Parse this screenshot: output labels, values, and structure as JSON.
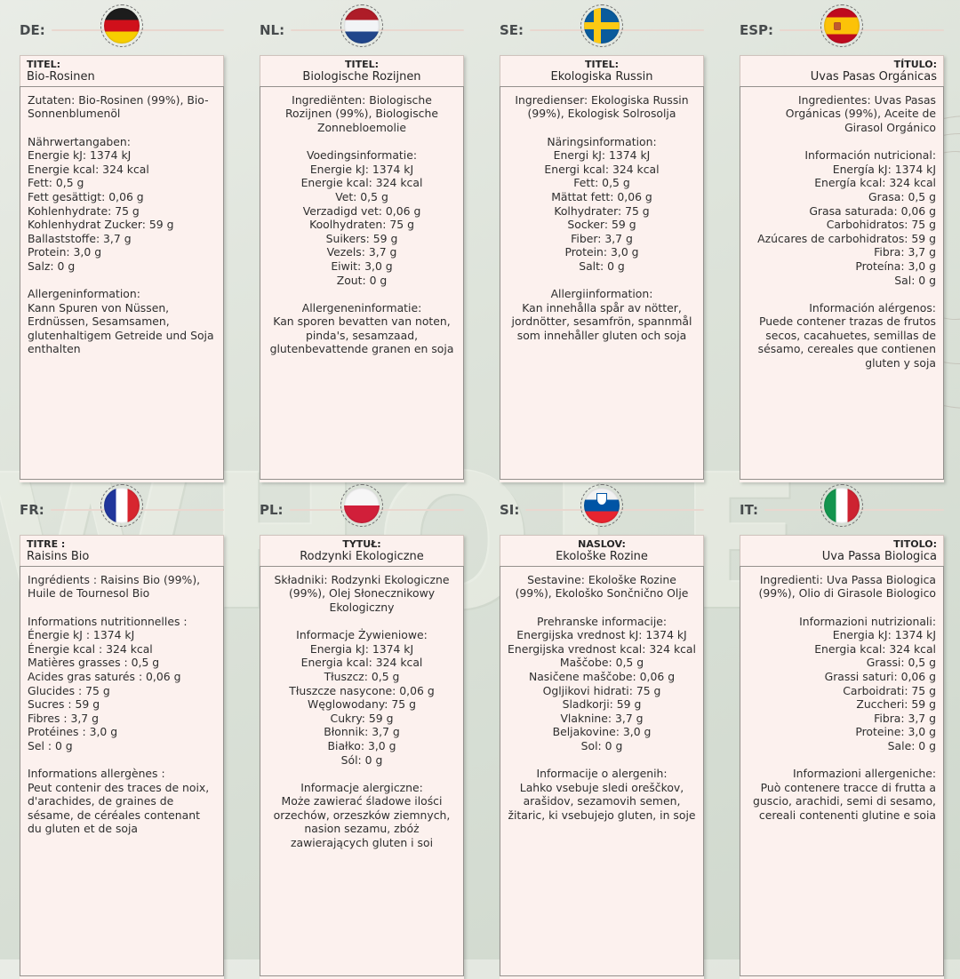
{
  "page": {
    "background_watermark": "WHOLE"
  },
  "panels": [
    {
      "code": "DE:",
      "flag": "germany-flag-icon",
      "title_label": "TITEL:",
      "title": "Bio-Rosinen",
      "body": "Zutaten: Bio-Rosinen (99%), Bio-Sonnenblumenöl\n\nNährwertangaben:\nEnergie kJ: 1374 kJ\nEnergie kcal: 324 kcal\nFett: 0,5 g\nFett gesättigt: 0,06 g\nKohlenhydrate: 75 g\nKohlenhydrat Zucker: 59 g\nBallaststoffe: 3,7 g\nProtein: 3,0 g\nSalz: 0 g\n\nAllergeninformation:\nKann Spuren von Nüssen, Erdnüssen, Sesamsamen, glutenhaltigem Getreide und Soja enthalten"
    },
    {
      "code": "NL:",
      "flag": "netherlands-flag-icon",
      "title_label": "TITEL:",
      "title": "Biologische Rozijnen",
      "body": "Ingrediënten: Biologische Rozijnen (99%), Biologische Zonnebloemolie\n\nVoedingsinformatie:\nEnergie kJ: 1374 kJ\nEnergie kcal: 324 kcal\nVet: 0,5 g\nVerzadigd vet: 0,06 g\nKoolhydraten: 75 g\nSuikers: 59 g\nVezels: 3,7 g\nEiwit: 3,0 g\nZout: 0 g\n\nAllergeneninformatie:\nKan sporen bevatten van noten, pinda's, sesamzaad, glutenbevattende granen en soja"
    },
    {
      "code": "SE:",
      "flag": "sweden-flag-icon",
      "title_label": "TITEL:",
      "title": "Ekologiska Russin",
      "body": "Ingredienser: Ekologiska Russin (99%), Ekologisk Solrosolja\n\nNäringsinformation:\nEnergi kJ: 1374 kJ\nEnergi kcal: 324 kcal\nFett: 0,5 g\nMättat fett: 0,06 g\nKolhydrater: 75 g\nSocker: 59 g\nFiber: 3,7 g\nProtein: 3,0 g\nSalt: 0 g\n\nAllergiinformation:\nKan innehålla spår av nötter, jordnötter, sesamfrön, spannmål som innehåller gluten och soja"
    },
    {
      "code": "ESP:",
      "flag": "spain-flag-icon",
      "title_label": "TÍTULO:",
      "title": "Uvas Pasas Orgánicas",
      "body": "Ingredientes: Uvas Pasas Orgánicas (99%), Aceite de Girasol Orgánico\n\nInformación nutricional:\nEnergía kJ: 1374 kJ\nEnergía kcal: 324 kcal\nGrasa: 0,5 g\nGrasa saturada: 0,06 g\nCarbohidratos: 75 g\nAzúcares de carbohidratos: 59 g\nFibra: 3,7 g\nProteína: 3,0 g\nSal: 0 g\n\nInformación alérgenos:\nPuede contener trazas de frutos secos, cacahuetes, semillas de sésamo, cereales que contienen gluten y soja"
    },
    {
      "code": "FR:",
      "flag": "france-flag-icon",
      "title_label": "TITRE :",
      "title": "Raisins Bio",
      "body": "Ingrédients : Raisins Bio (99%), Huile de Tournesol Bio\n\nInformations nutritionnelles :\nÉnergie kJ : 1374 kJ\nÉnergie kcal : 324 kcal\nMatières grasses : 0,5 g\nAcides gras saturés : 0,06 g\nGlucides : 75 g\nSucres : 59 g\nFibres : 3,7 g\nProtéines : 3,0 g\nSel : 0 g\n\nInformations allergènes :\nPeut contenir des traces de noix, d'arachides, de graines de sésame, de céréales contenant du gluten et de soja"
    },
    {
      "code": "PL:",
      "flag": "poland-flag-icon",
      "title_label": "TYTUŁ:",
      "title": "Rodzynki Ekologiczne",
      "body": "Składniki: Rodzynki Ekologiczne (99%), Olej Słonecznikowy Ekologiczny\n\nInformacje Żywieniowe:\nEnergia kJ: 1374 kJ\nEnergia kcal: 324 kcal\nTłuszcz: 0,5 g\nTłuszcze nasycone: 0,06 g\nWęglowodany: 75 g\nCukry: 59 g\nBłonnik: 3,7 g\nBiałko: 3,0 g\nSól: 0 g\n\nInformacje alergiczne:\nMoże zawierać śladowe ilości orzechów, orzeszków ziemnych, nasion sezamu, zbóż zawierających gluten i soi"
    },
    {
      "code": "SI:",
      "flag": "slovenia-flag-icon",
      "title_label": "NASLOV:",
      "title": "Ekološke Rozine",
      "body": "Sestavine: Ekološke Rozine (99%), Ekološko Sončnično Olje\n\nPrehranske informacije:\nEnergijska vrednost kJ: 1374 kJ\nEnergijska vrednost kcal: 324 kcal\nMaščobe: 0,5 g\nNasičene maščobe: 0,06 g\nOgljikovi hidrati: 75 g\nSladkorji: 59 g\nVlaknine: 3,7 g\nBeljakovine: 3,0 g\nSol: 0 g\n\nInformacije o alergenih:\nLahko vsebuje sledi oreščkov, arašidov, sezamovih semen, žitaric, ki vsebujejo gluten, in soje"
    },
    {
      "code": "IT:",
      "flag": "italy-flag-icon",
      "title_label": "TITOLO:",
      "title": "Uva Passa Biologica",
      "body": "Ingredienti: Uva Passa Biologica (99%), Olio di Girasole Biologico\n\nInformazioni nutrizionali:\nEnergia kJ: 1374 kJ\nEnergia kcal: 324 kcal\nGrassi: 0,5 g\nGrassi saturi: 0,06 g\nCarboidrati: 75 g\nZuccheri: 59 g\nFibra: 3,7 g\nProteine: 3,0 g\nSale: 0 g\n\nInformazioni allergeniche:\nPuò contenere tracce di frutta a guscio, arachidi, semi di sesamo, cereali contenenti glutine e soia"
    }
  ]
}
